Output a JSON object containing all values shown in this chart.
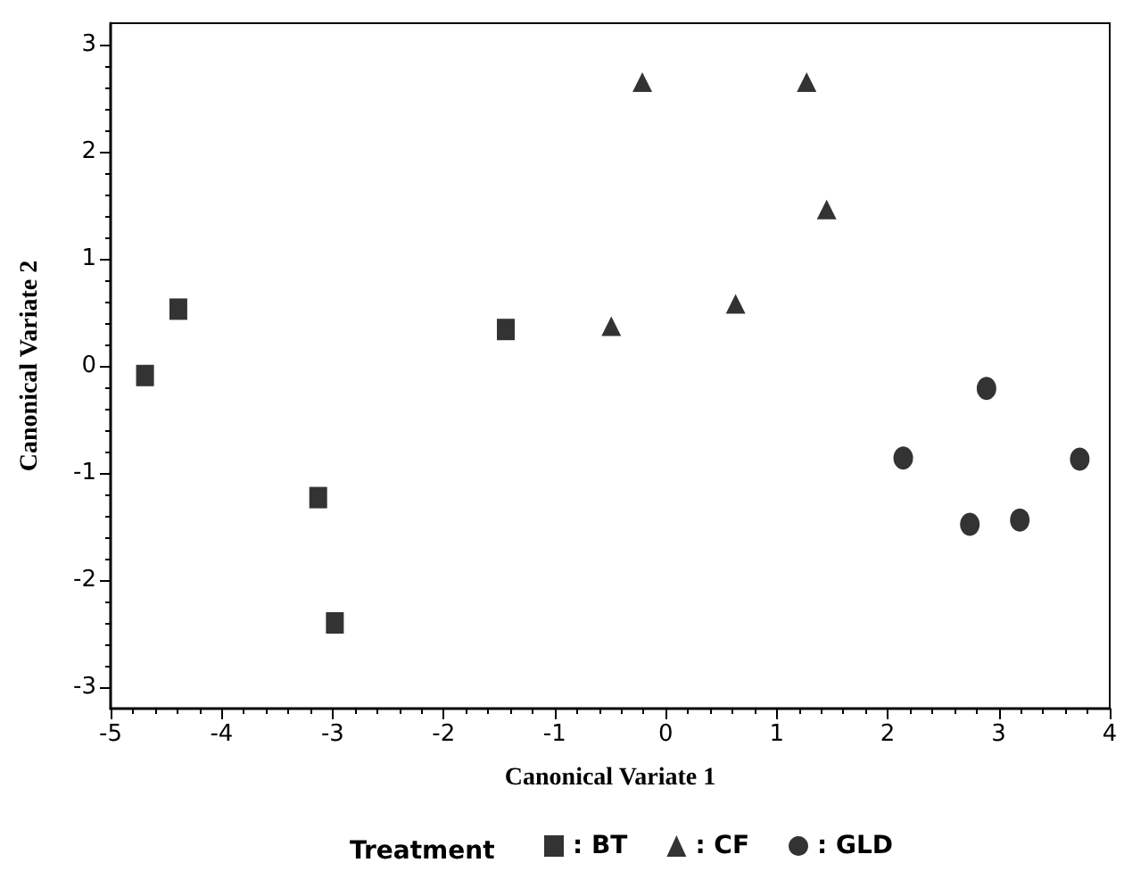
{
  "chart_data": {
    "type": "scatter",
    "xlabel": "Canonical Variate 1",
    "ylabel": "Canonical Variate 2",
    "legend_title": "Treatment",
    "legend": "bottom",
    "grid": false,
    "xlim": [
      -5,
      4
    ],
    "xticks": [
      -5,
      -4,
      -3,
      -2,
      -1,
      0,
      1,
      2,
      3,
      4
    ],
    "ylim": [
      -3.2,
      3.2
    ],
    "yticks": [
      -3,
      -2,
      -1,
      0,
      1,
      2,
      3
    ],
    "series": [
      {
        "name": ": BT",
        "color": "#000000",
        "marker": "square",
        "x": [
          -4.69,
          -4.39,
          -3.13,
          -2.98,
          -1.44
        ],
        "values": [
          -0.09,
          0.53,
          -1.23,
          -2.4,
          0.34
        ]
      },
      {
        "name": ": CF",
        "color": "#000000",
        "marker": "triangle",
        "x": [
          -0.21,
          1.27,
          1.45,
          0.63,
          -0.49
        ],
        "values": [
          2.65,
          2.65,
          1.46,
          0.58,
          0.37
        ]
      },
      {
        "name": ": GLD",
        "color": "#000000",
        "marker": "circle",
        "x": [
          2.89,
          2.14,
          3.73,
          2.74,
          3.19
        ],
        "values": [
          -0.21,
          -0.86,
          -0.87,
          -1.48,
          -1.44
        ]
      }
    ]
  }
}
